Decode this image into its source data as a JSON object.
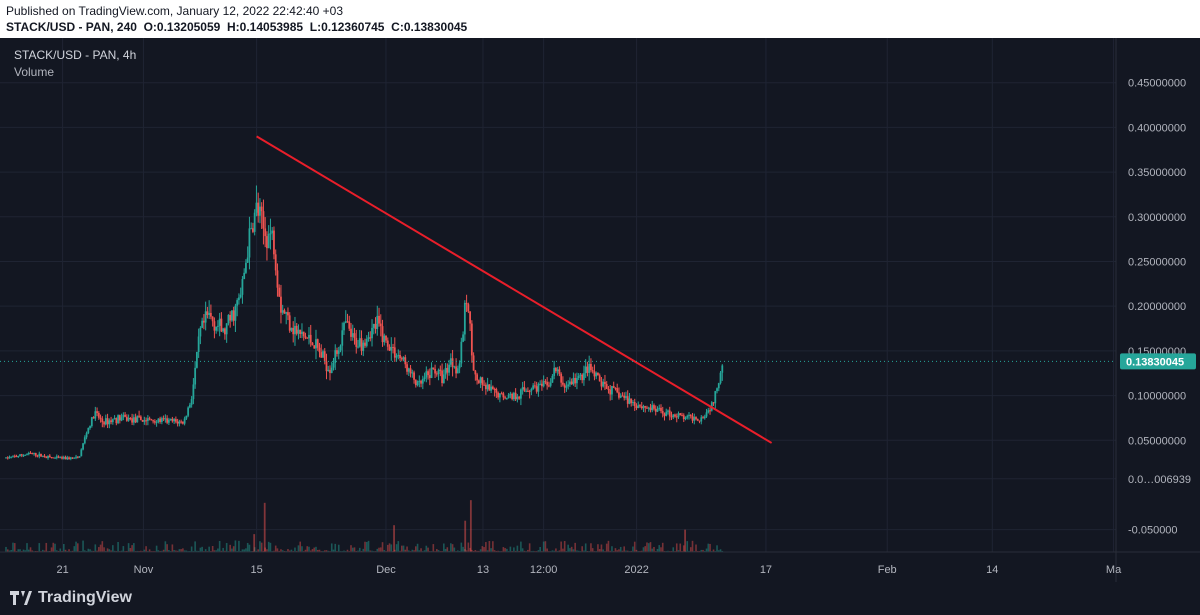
{
  "header": {
    "published": "Published on TradingView.com, January 12, 2022 22:42:40 +03",
    "symbol_line": "STACK/USD - PAN, 240",
    "ohlc": {
      "O": "0.13205059",
      "H": "0.14053985",
      "L": "0.12360745",
      "C": "0.13830045"
    }
  },
  "legend": {
    "symbol": "STACK/USD - PAN, 4h",
    "volume": "Volume"
  },
  "brand": "TradingView",
  "chart_data": {
    "type": "candlestick",
    "ylim": [
      -0.075,
      0.5
    ],
    "y_ticks": [
      {
        "value": 0.45,
        "label": "0.45000000"
      },
      {
        "value": 0.4,
        "label": "0.40000000"
      },
      {
        "value": 0.35,
        "label": "0.35000000"
      },
      {
        "value": 0.3,
        "label": "0.30000000"
      },
      {
        "value": 0.25,
        "label": "0.25000000"
      },
      {
        "value": 0.2,
        "label": "0.20000000"
      },
      {
        "value": 0.15,
        "label": "0.15000000"
      },
      {
        "value": 0.1,
        "label": "0.10000000"
      },
      {
        "value": 0.05,
        "label": "0.05000000"
      },
      {
        "value": 0.006939,
        "label": "0.0…006939"
      },
      {
        "value": -0.05,
        "label": "-0.050000"
      }
    ],
    "x_ticks": [
      {
        "t": 21,
        "label": "21"
      },
      {
        "t": 31,
        "label": "Nov"
      },
      {
        "t": 45,
        "label": "15"
      },
      {
        "t": 61,
        "label": "Dec"
      },
      {
        "t": 73,
        "label": "13"
      },
      {
        "t": 80.5,
        "label": "12:00"
      },
      {
        "t": 92,
        "label": "2022"
      },
      {
        "t": 108,
        "label": "17"
      },
      {
        "t": 123,
        "label": "Feb"
      },
      {
        "t": 136,
        "label": "14"
      },
      {
        "t": 151,
        "label": "Ma"
      }
    ],
    "x_range": [
      14,
      151.3
    ],
    "last_price": {
      "value": 0.1383,
      "label": "0.13830045"
    },
    "trendline": {
      "start": {
        "t": 45,
        "price": 0.39
      },
      "end": {
        "t": 108.7,
        "price": 0.047
      }
    },
    "price_path": [
      [
        14,
        0.03
      ],
      [
        17,
        0.035
      ],
      [
        20,
        0.03
      ],
      [
        23,
        0.03
      ],
      [
        24,
        0.06
      ],
      [
        25,
        0.08
      ],
      [
        26,
        0.07
      ],
      [
        28,
        0.075
      ],
      [
        30,
        0.073
      ],
      [
        33,
        0.072
      ],
      [
        36,
        0.07
      ],
      [
        37,
        0.1
      ],
      [
        38,
        0.17
      ],
      [
        39,
        0.19
      ],
      [
        41,
        0.17
      ],
      [
        43,
        0.21
      ],
      [
        44,
        0.27
      ],
      [
        45,
        0.31
      ],
      [
        46,
        0.28
      ],
      [
        47,
        0.28
      ],
      [
        48,
        0.2
      ],
      [
        50,
        0.17
      ],
      [
        52,
        0.16
      ],
      [
        54,
        0.13
      ],
      [
        55,
        0.15
      ],
      [
        56,
        0.18
      ],
      [
        57,
        0.16
      ],
      [
        58,
        0.16
      ],
      [
        59,
        0.17
      ],
      [
        60,
        0.18
      ],
      [
        61,
        0.16
      ],
      [
        63,
        0.14
      ],
      [
        65,
        0.11
      ],
      [
        67,
        0.13
      ],
      [
        68,
        0.12
      ],
      [
        69,
        0.14
      ],
      [
        70,
        0.13
      ],
      [
        71,
        0.21
      ],
      [
        72,
        0.12
      ],
      [
        73,
        0.11
      ],
      [
        75,
        0.1
      ],
      [
        77,
        0.1
      ],
      [
        79,
        0.11
      ],
      [
        81,
        0.11
      ],
      [
        82,
        0.13
      ],
      [
        83,
        0.11
      ],
      [
        85,
        0.12
      ],
      [
        86,
        0.13
      ],
      [
        88,
        0.11
      ],
      [
        90,
        0.1
      ],
      [
        92,
        0.09
      ],
      [
        94,
        0.085
      ],
      [
        96,
        0.08
      ],
      [
        98,
        0.075
      ],
      [
        100,
        0.075
      ],
      [
        101,
        0.085
      ],
      [
        101.8,
        0.1
      ],
      [
        102.6,
        0.1383
      ]
    ],
    "volume_spikes": [
      {
        "t": 46,
        "value": 0.055
      },
      {
        "t": 71.5,
        "value": 0.058
      },
      {
        "t": 62,
        "value": 0.03
      },
      {
        "t": 98,
        "value": 0.025
      },
      {
        "t": 70.8,
        "value": 0.035
      },
      {
        "t": 44.7,
        "value": 0.02
      }
    ],
    "colors": {
      "up": "#26a69a",
      "down": "#ef5350",
      "trendline": "#e91e2a",
      "grid": "#1f2433",
      "axis_text": "#b2b5be",
      "last_price_bg": "#26a69a"
    }
  }
}
